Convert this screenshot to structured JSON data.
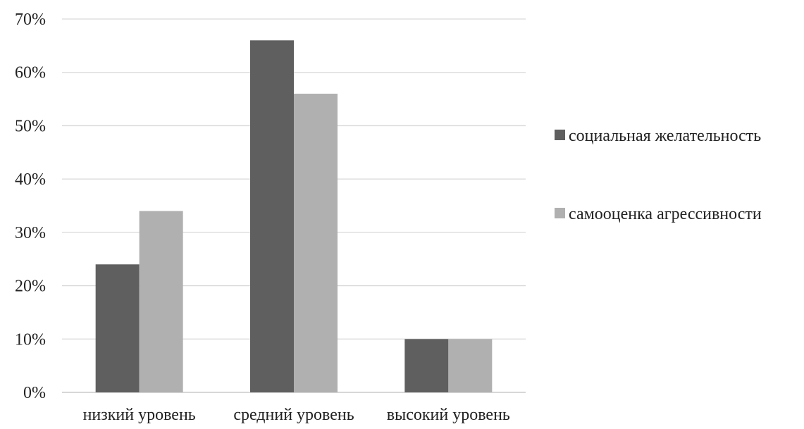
{
  "chart_data": {
    "type": "bar",
    "title": "",
    "xlabel": "",
    "ylabel": "",
    "categories": [
      "низкий уровень",
      "средний уровень",
      "высокий уровень"
    ],
    "series": [
      {
        "name": "социальная желательность",
        "values": [
          24,
          66,
          10
        ],
        "color": "#5f5f5f"
      },
      {
        "name": "самооценка агрессивности",
        "values": [
          34,
          56,
          10
        ],
        "color": "#b0b0b0"
      }
    ],
    "ylim": [
      0,
      70
    ],
    "y_ticks": [
      0,
      10,
      20,
      30,
      40,
      50,
      60,
      70
    ],
    "y_tick_suffix": "%",
    "grid": true,
    "legend_position": "right"
  }
}
